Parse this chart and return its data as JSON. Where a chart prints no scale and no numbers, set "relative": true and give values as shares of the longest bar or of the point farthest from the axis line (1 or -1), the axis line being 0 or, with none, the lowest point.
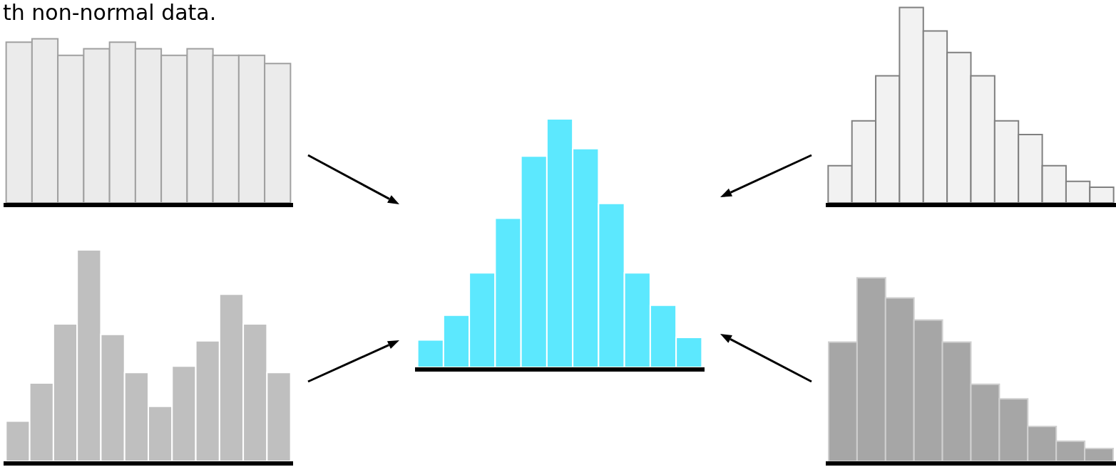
{
  "chart_data": [
    {
      "type": "bar",
      "title": "th non-normal data.",
      "relative": true,
      "categories": [
        null,
        null,
        null,
        null,
        null,
        null,
        null,
        null,
        null,
        null,
        null
      ],
      "color": "#ebebeb",
      "values": [
        0.98,
        1,
        0.9,
        0.94,
        0.98,
        0.94,
        0.9,
        0.94,
        0.9,
        0.9,
        0.85
      ]
    },
    {
      "type": "bar",
      "relative": true,
      "categories": [
        null,
        null,
        null,
        null,
        null,
        null,
        null,
        null,
        null,
        null,
        null,
        null
      ],
      "color": "#bfbfbf",
      "values": [
        0.19,
        0.37,
        0.65,
        1,
        0.6,
        0.42,
        0.26,
        0.45,
        0.57,
        0.79,
        0.65,
        0.42
      ]
    },
    {
      "type": "bar",
      "relative": true,
      "categories": [
        null,
        null,
        null,
        null,
        null,
        null,
        null,
        null,
        null,
        null,
        null
      ],
      "color": "#5ce8fe",
      "values": [
        0.11,
        0.21,
        0.38,
        0.6,
        0.85,
        1,
        0.88,
        0.66,
        0.38,
        0.25,
        0.12
      ]
    },
    {
      "type": "bar",
      "relative": true,
      "categories": [
        null,
        null,
        null,
        null,
        null,
        null,
        null,
        null,
        null,
        null,
        null,
        null
      ],
      "color": "#f2f2f2",
      "values": [
        0.19,
        0.42,
        0.65,
        1,
        0.88,
        0.77,
        0.65,
        0.42,
        0.35,
        0.19,
        0.11,
        0.08
      ]
    },
    {
      "type": "bar",
      "relative": true,
      "categories": [
        null,
        null,
        null,
        null,
        null,
        null,
        null,
        null,
        null,
        null
      ],
      "color": "#a6a6a6",
      "values": [
        0.65,
        1,
        0.89,
        0.77,
        0.65,
        0.42,
        0.34,
        0.19,
        0.11,
        0.07
      ]
    }
  ]
}
